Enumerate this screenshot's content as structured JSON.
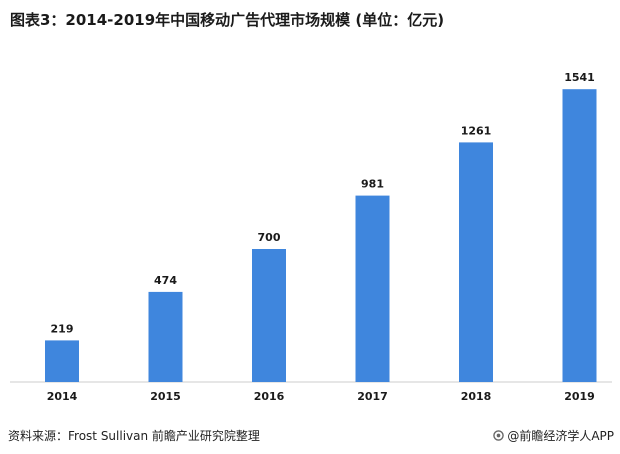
{
  "header": {
    "title": "图表3：2014-2019年中国移动广告代理市场规模 (单位：亿元)"
  },
  "chart_data": {
    "type": "bar",
    "title": "图表3：2014-2019年中国移动广告代理市场规模 (单位：亿元)",
    "categories": [
      "2014",
      "2015",
      "2016",
      "2017",
      "2018",
      "2019"
    ],
    "values": [
      219,
      474,
      700,
      981,
      1261,
      1541
    ],
    "unit": "亿元",
    "ylim": [
      0,
      1600
    ],
    "grid": false,
    "legend": "none",
    "colors": {
      "bar": "#3f86dd",
      "label": "#1a1a1a",
      "axis": "#cccccc"
    }
  },
  "footer": {
    "source": "资料来源：Frost Sullivan 前瞻产业研究院整理",
    "credit": "@前瞻经济学人APP",
    "credit_icon": "brand-logo-icon"
  }
}
